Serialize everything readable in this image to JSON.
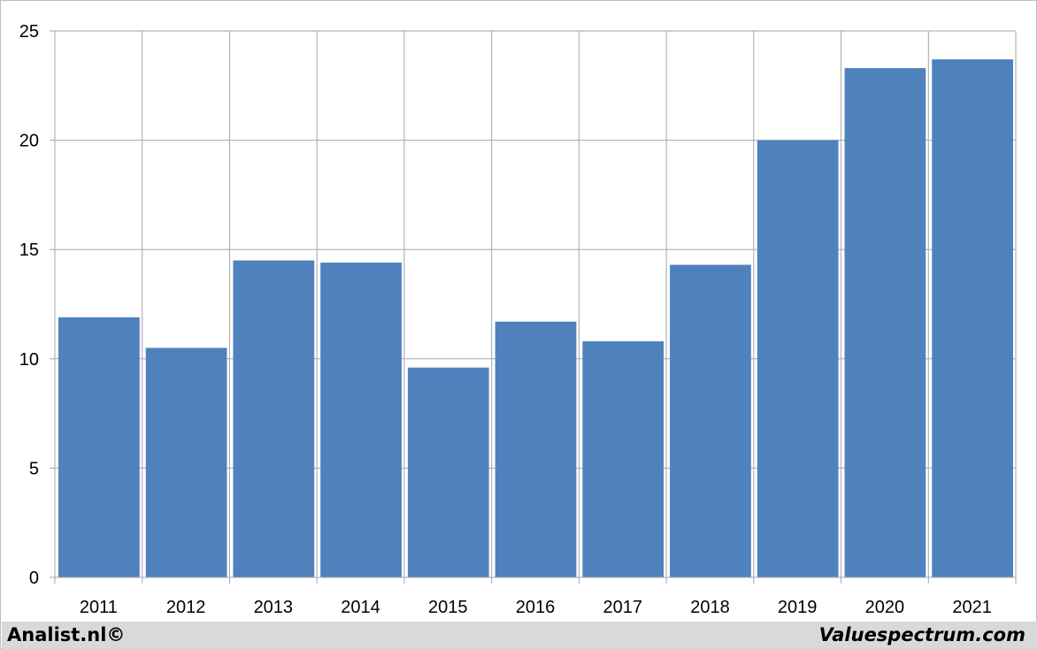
{
  "chart_data": {
    "type": "bar",
    "categories": [
      "2011",
      "2012",
      "2013",
      "2014",
      "2015",
      "2016",
      "2017",
      "2018",
      "2019",
      "2020",
      "2021"
    ],
    "values": [
      11.9,
      10.5,
      14.5,
      14.4,
      9.6,
      11.7,
      10.8,
      14.3,
      20.0,
      23.3,
      23.7
    ],
    "ylim": [
      0,
      25
    ],
    "yticks": [
      "0",
      "5",
      "10",
      "15",
      "20",
      "25"
    ],
    "grid": true,
    "bar_color": "#4f81bd",
    "grid_color": "#a6a6a6"
  },
  "footer": {
    "left": "Analist.nl©",
    "right": "Valuespectrum.com",
    "background": "#d9d9d9"
  }
}
